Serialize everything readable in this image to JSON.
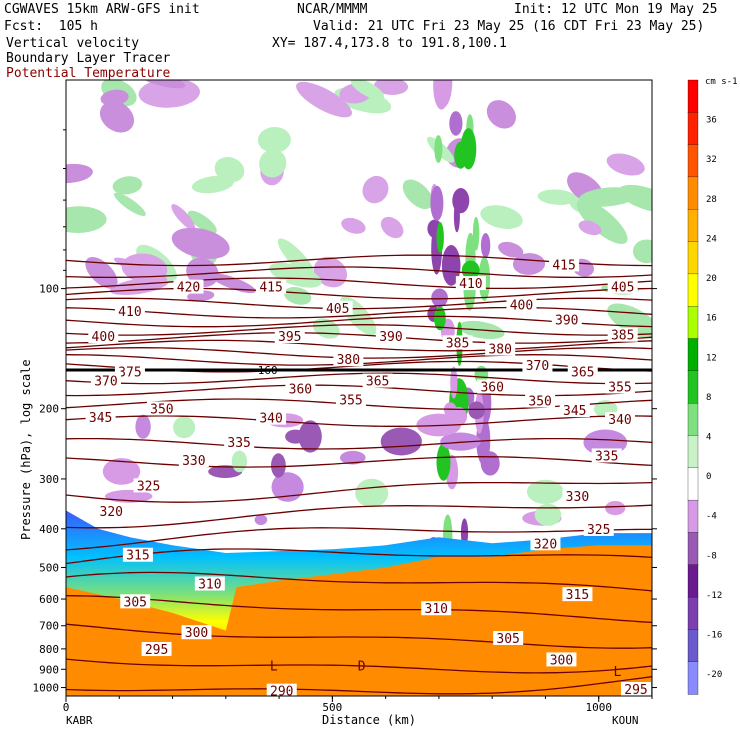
{
  "header": {
    "model": "CGWAVES 15km ARW-GFS init",
    "center": "NCAR/MMMM",
    "init": "Init: 12 UTC Mon 19 May 25",
    "fcst": "Fcst:  105 h",
    "valid": "Valid: 21 UTC Fri 23 May 25 (16 CDT Fri 23 May 25)",
    "field1": "Vertical velocity",
    "field2": "Boundary Layer Tracer",
    "field3": "Potential Temperature",
    "xy": "XY= 187.4,173.8 to 191.8,100.1"
  },
  "colors": {
    "theta": "#6b0000",
    "tracer": "#ff8c00"
  },
  "colorbar": {
    "units": "cm s-1",
    "levels": [
      -20,
      -16,
      -12,
      -8,
      -4,
      0,
      4,
      8,
      12,
      16,
      20,
      24,
      28,
      32,
      36
    ],
    "level_labels": [
      "-20",
      "-16",
      "-12",
      "-8",
      "-4",
      "0",
      "4",
      "8",
      "12",
      "16",
      "20",
      "24",
      "28",
      "32",
      "36"
    ],
    "colors": [
      "#8a8aff",
      "#6a5acd",
      "#7b3fb0",
      "#6a1b8f",
      "#9b59b6",
      "#d79be6",
      "#ffffff",
      "#c9f2c9",
      "#7ee07e",
      "#22c422",
      "#00b000",
      "#aaff00",
      "#ffff00",
      "#ffd700",
      "#ffb000",
      "#ff8c00",
      "#ff5500",
      "#ff2200",
      "#ff0000"
    ]
  },
  "chart_data": {
    "type": "cross-section",
    "xlabel": "Distance (km)",
    "ylabel": "Pressure (hPa), log scale",
    "x_ticks": [
      0,
      500,
      1000
    ],
    "x_tick_labels": [
      "0",
      "500",
      "1000"
    ],
    "x_range": [
      0,
      1100
    ],
    "x_endpoints": {
      "left": "KABR",
      "right": "KOUN"
    },
    "y_ticks": [
      100,
      200,
      300,
      400,
      500,
      600,
      700,
      800,
      900,
      1000
    ],
    "y_tick_labels": [
      "100",
      "200",
      "300",
      "400",
      "500",
      "600",
      "700",
      "800",
      "900",
      "1000"
    ],
    "y_range": [
      1050,
      30
    ],
    "y_scale": "log",
    "tropopause_pressure": 160,
    "tropopause_label": "160",
    "theta_contours": [
      {
        "label": "420",
        "x": 230,
        "p": 100
      },
      {
        "label": "415",
        "x": 385,
        "p": 100
      },
      {
        "label": "415",
        "x": 935,
        "p": 88
      },
      {
        "label": "410",
        "x": 120,
        "p": 115
      },
      {
        "label": "410",
        "x": 760,
        "p": 98
      },
      {
        "label": "405",
        "x": 510,
        "p": 113
      },
      {
        "label": "405",
        "x": 1045,
        "p": 100
      },
      {
        "label": "400",
        "x": 70,
        "p": 133
      },
      {
        "label": "400",
        "x": 855,
        "p": 111
      },
      {
        "label": "395",
        "x": 420,
        "p": 133
      },
      {
        "label": "390",
        "x": 610,
        "p": 133
      },
      {
        "label": "390",
        "x": 940,
        "p": 121
      },
      {
        "label": "385",
        "x": 735,
        "p": 138
      },
      {
        "label": "385",
        "x": 1045,
        "p": 132
      },
      {
        "label": "380",
        "x": 530,
        "p": 152
      },
      {
        "label": "380",
        "x": 815,
        "p": 143
      },
      {
        "label": "375",
        "x": 120,
        "p": 163
      },
      {
        "label": "370",
        "x": 75,
        "p": 172
      },
      {
        "label": "370",
        "x": 885,
        "p": 157
      },
      {
        "label": "365",
        "x": 585,
        "p": 172
      },
      {
        "label": "365",
        "x": 970,
        "p": 163
      },
      {
        "label": "360",
        "x": 440,
        "p": 180
      },
      {
        "label": "360",
        "x": 800,
        "p": 178
      },
      {
        "label": "355",
        "x": 535,
        "p": 192
      },
      {
        "label": "355",
        "x": 1040,
        "p": 178
      },
      {
        "label": "350",
        "x": 180,
        "p": 202
      },
      {
        "label": "350",
        "x": 890,
        "p": 193
      },
      {
        "label": "345",
        "x": 65,
        "p": 212
      },
      {
        "label": "345",
        "x": 955,
        "p": 204
      },
      {
        "label": "340",
        "x": 385,
        "p": 213
      },
      {
        "label": "340",
        "x": 1040,
        "p": 215
      },
      {
        "label": "335",
        "x": 325,
        "p": 245
      },
      {
        "label": "335",
        "x": 1015,
        "p": 265
      },
      {
        "label": "330",
        "x": 240,
        "p": 272
      },
      {
        "label": "330",
        "x": 960,
        "p": 335
      },
      {
        "label": "325",
        "x": 155,
        "p": 315
      },
      {
        "label": "325",
        "x": 1000,
        "p": 405
      },
      {
        "label": "320",
        "x": 85,
        "p": 365
      },
      {
        "label": "320",
        "x": 900,
        "p": 440
      },
      {
        "label": "315",
        "x": 135,
        "p": 470
      },
      {
        "label": "315",
        "x": 960,
        "p": 590
      },
      {
        "label": "310",
        "x": 270,
        "p": 555
      },
      {
        "label": "310",
        "x": 695,
        "p": 640
      },
      {
        "label": "305",
        "x": 130,
        "p": 615
      },
      {
        "label": "305",
        "x": 830,
        "p": 760
      },
      {
        "label": "300",
        "x": 245,
        "p": 735
      },
      {
        "label": "300",
        "x": 930,
        "p": 860
      },
      {
        "label": "295",
        "x": 170,
        "p": 810
      },
      {
        "label": "295",
        "x": 1070,
        "p": 1020
      },
      {
        "label": "290",
        "x": 405,
        "p": 1030
      }
    ],
    "annotations": [
      {
        "text": "L",
        "x": 390,
        "p": 880
      },
      {
        "text": "L",
        "x": 1035,
        "p": 910
      },
      {
        "text": "D",
        "x": 555,
        "p": 880
      }
    ]
  }
}
